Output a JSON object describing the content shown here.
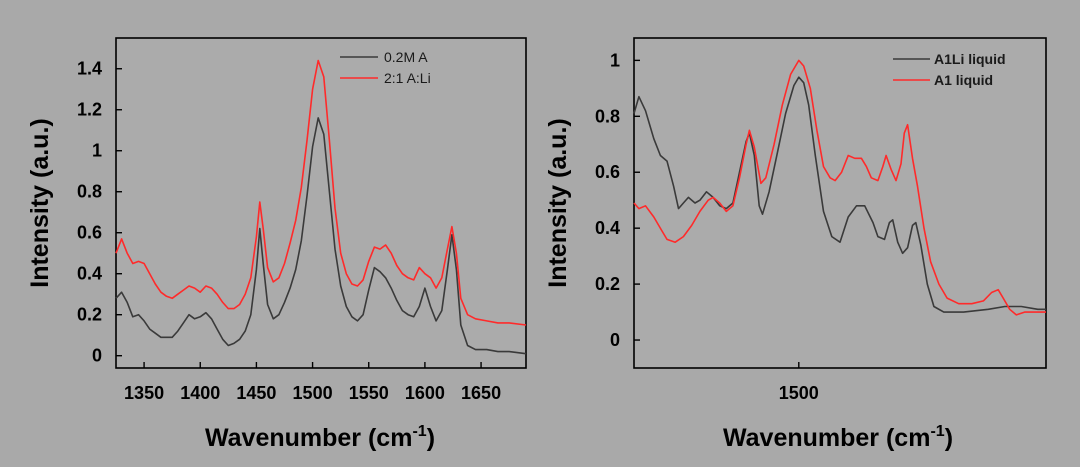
{
  "colors": {
    "background": "#a9a9a9",
    "plot_bg": "#ababab",
    "series_black": "#3a3a3a",
    "series_red": "#ff2a2a"
  },
  "chart_data": [
    {
      "type": "line",
      "xlabel": "Wavenumber (cm",
      "xlabel_sup": "-1",
      "xlabel_close": ")",
      "ylabel": "Intensity (a.u.)",
      "xlim": [
        1325,
        1690
      ],
      "ylim": [
        -0.06,
        1.55
      ],
      "xticks": [
        1350,
        1400,
        1450,
        1500,
        1550,
        1600,
        1650
      ],
      "xtick_labels": [
        "1350",
        "1400",
        "1450",
        "1500",
        "1550",
        "1600",
        "1650"
      ],
      "yticks": [
        0,
        0.2,
        0.4,
        0.6,
        0.8,
        1,
        1.2,
        1.4
      ],
      "ytick_labels": [
        "0",
        "0.2",
        "0.4",
        "0.6",
        "0.8",
        "1",
        "1.2",
        "1.4"
      ],
      "legend_position": "top-right",
      "series": [
        {
          "name": "0.2M A",
          "color": "#3a3a3a",
          "points": [
            [
              1325,
              0.28
            ],
            [
              1330,
              0.31
            ],
            [
              1335,
              0.26
            ],
            [
              1340,
              0.19
            ],
            [
              1345,
              0.2
            ],
            [
              1350,
              0.17
            ],
            [
              1355,
              0.13
            ],
            [
              1360,
              0.11
            ],
            [
              1365,
              0.09
            ],
            [
              1370,
              0.09
            ],
            [
              1375,
              0.09
            ],
            [
              1380,
              0.12
            ],
            [
              1385,
              0.16
            ],
            [
              1390,
              0.2
            ],
            [
              1395,
              0.18
            ],
            [
              1400,
              0.19
            ],
            [
              1405,
              0.21
            ],
            [
              1410,
              0.18
            ],
            [
              1415,
              0.13
            ],
            [
              1420,
              0.08
            ],
            [
              1425,
              0.05
            ],
            [
              1430,
              0.06
            ],
            [
              1435,
              0.08
            ],
            [
              1440,
              0.12
            ],
            [
              1445,
              0.2
            ],
            [
              1450,
              0.42
            ],
            [
              1453,
              0.62
            ],
            [
              1456,
              0.45
            ],
            [
              1460,
              0.25
            ],
            [
              1465,
              0.18
            ],
            [
              1470,
              0.2
            ],
            [
              1475,
              0.26
            ],
            [
              1480,
              0.33
            ],
            [
              1485,
              0.42
            ],
            [
              1490,
              0.56
            ],
            [
              1495,
              0.78
            ],
            [
              1500,
              1.02
            ],
            [
              1505,
              1.16
            ],
            [
              1510,
              1.08
            ],
            [
              1515,
              0.8
            ],
            [
              1520,
              0.52
            ],
            [
              1525,
              0.34
            ],
            [
              1530,
              0.24
            ],
            [
              1535,
              0.19
            ],
            [
              1540,
              0.17
            ],
            [
              1545,
              0.2
            ],
            [
              1550,
              0.32
            ],
            [
              1555,
              0.43
            ],
            [
              1560,
              0.41
            ],
            [
              1565,
              0.38
            ],
            [
              1570,
              0.33
            ],
            [
              1575,
              0.27
            ],
            [
              1580,
              0.22
            ],
            [
              1585,
              0.2
            ],
            [
              1590,
              0.19
            ],
            [
              1595,
              0.24
            ],
            [
              1600,
              0.33
            ],
            [
              1605,
              0.24
            ],
            [
              1610,
              0.17
            ],
            [
              1615,
              0.22
            ],
            [
              1620,
              0.42
            ],
            [
              1624,
              0.59
            ],
            [
              1628,
              0.42
            ],
            [
              1632,
              0.15
            ],
            [
              1638,
              0.05
            ],
            [
              1645,
              0.03
            ],
            [
              1655,
              0.03
            ],
            [
              1665,
              0.02
            ],
            [
              1675,
              0.02
            ],
            [
              1690,
              0.01
            ]
          ]
        },
        {
          "name": "2:1 A:Li",
          "color": "#ff2a2a",
          "points": [
            [
              1325,
              0.5
            ],
            [
              1330,
              0.57
            ],
            [
              1335,
              0.5
            ],
            [
              1340,
              0.45
            ],
            [
              1345,
              0.46
            ],
            [
              1350,
              0.45
            ],
            [
              1355,
              0.4
            ],
            [
              1360,
              0.35
            ],
            [
              1365,
              0.31
            ],
            [
              1370,
              0.29
            ],
            [
              1375,
              0.28
            ],
            [
              1380,
              0.3
            ],
            [
              1385,
              0.32
            ],
            [
              1390,
              0.34
            ],
            [
              1395,
              0.33
            ],
            [
              1400,
              0.31
            ],
            [
              1405,
              0.34
            ],
            [
              1410,
              0.33
            ],
            [
              1415,
              0.3
            ],
            [
              1420,
              0.26
            ],
            [
              1425,
              0.23
            ],
            [
              1430,
              0.23
            ],
            [
              1435,
              0.25
            ],
            [
              1440,
              0.3
            ],
            [
              1445,
              0.38
            ],
            [
              1450,
              0.58
            ],
            [
              1453,
              0.75
            ],
            [
              1456,
              0.62
            ],
            [
              1460,
              0.43
            ],
            [
              1465,
              0.36
            ],
            [
              1470,
              0.38
            ],
            [
              1475,
              0.45
            ],
            [
              1480,
              0.55
            ],
            [
              1485,
              0.66
            ],
            [
              1490,
              0.82
            ],
            [
              1495,
              1.05
            ],
            [
              1500,
              1.3
            ],
            [
              1505,
              1.44
            ],
            [
              1510,
              1.36
            ],
            [
              1515,
              1.05
            ],
            [
              1520,
              0.72
            ],
            [
              1525,
              0.5
            ],
            [
              1530,
              0.4
            ],
            [
              1535,
              0.35
            ],
            [
              1540,
              0.34
            ],
            [
              1545,
              0.37
            ],
            [
              1550,
              0.46
            ],
            [
              1555,
              0.53
            ],
            [
              1560,
              0.52
            ],
            [
              1565,
              0.54
            ],
            [
              1570,
              0.5
            ],
            [
              1575,
              0.44
            ],
            [
              1580,
              0.4
            ],
            [
              1585,
              0.38
            ],
            [
              1590,
              0.37
            ],
            [
              1595,
              0.43
            ],
            [
              1600,
              0.4
            ],
            [
              1605,
              0.38
            ],
            [
              1610,
              0.33
            ],
            [
              1615,
              0.38
            ],
            [
              1620,
              0.52
            ],
            [
              1624,
              0.63
            ],
            [
              1628,
              0.5
            ],
            [
              1632,
              0.28
            ],
            [
              1638,
              0.2
            ],
            [
              1645,
              0.18
            ],
            [
              1655,
              0.17
            ],
            [
              1665,
              0.16
            ],
            [
              1675,
              0.16
            ],
            [
              1690,
              0.15
            ]
          ]
        }
      ]
    },
    {
      "type": "line",
      "xlabel": "Wavenumber (cm",
      "xlabel_sup": "-1",
      "xlabel_close": ")",
      "ylabel": "Intensity (a.u.)",
      "xlim": [
        1400,
        1650
      ],
      "ylim": [
        -0.1,
        1.08
      ],
      "xticks": [
        1500
      ],
      "xtick_labels": [
        "1500"
      ],
      "yticks": [
        0,
        0.2,
        0.4,
        0.6,
        0.8,
        1
      ],
      "ytick_labels": [
        "0",
        "0.2",
        "0.4",
        "0.6",
        "0.8",
        "1"
      ],
      "legend_position": "top-right",
      "series": [
        {
          "name": "A1Li liquid",
          "color": "#3a3a3a",
          "points": [
            [
              1400,
              0.81
            ],
            [
              1403,
              0.87
            ],
            [
              1407,
              0.82
            ],
            [
              1412,
              0.72
            ],
            [
              1416,
              0.66
            ],
            [
              1420,
              0.64
            ],
            [
              1424,
              0.55
            ],
            [
              1427,
              0.47
            ],
            [
              1430,
              0.49
            ],
            [
              1433,
              0.51
            ],
            [
              1437,
              0.49
            ],
            [
              1440,
              0.5
            ],
            [
              1444,
              0.53
            ],
            [
              1448,
              0.51
            ],
            [
              1452,
              0.48
            ],
            [
              1456,
              0.47
            ],
            [
              1460,
              0.49
            ],
            [
              1464,
              0.6
            ],
            [
              1468,
              0.71
            ],
            [
              1470,
              0.74
            ],
            [
              1473,
              0.66
            ],
            [
              1476,
              0.48
            ],
            [
              1478,
              0.45
            ],
            [
              1482,
              0.53
            ],
            [
              1487,
              0.67
            ],
            [
              1492,
              0.81
            ],
            [
              1497,
              0.91
            ],
            [
              1500,
              0.94
            ],
            [
              1503,
              0.92
            ],
            [
              1506,
              0.84
            ],
            [
              1510,
              0.66
            ],
            [
              1515,
              0.46
            ],
            [
              1520,
              0.37
            ],
            [
              1525,
              0.35
            ],
            [
              1530,
              0.44
            ],
            [
              1535,
              0.48
            ],
            [
              1540,
              0.48
            ],
            [
              1545,
              0.42
            ],
            [
              1548,
              0.37
            ],
            [
              1552,
              0.36
            ],
            [
              1555,
              0.42
            ],
            [
              1557,
              0.43
            ],
            [
              1560,
              0.35
            ],
            [
              1563,
              0.31
            ],
            [
              1566,
              0.33
            ],
            [
              1569,
              0.41
            ],
            [
              1571,
              0.42
            ],
            [
              1574,
              0.34
            ],
            [
              1578,
              0.2
            ],
            [
              1582,
              0.12
            ],
            [
              1588,
              0.1
            ],
            [
              1600,
              0.1
            ],
            [
              1615,
              0.11
            ],
            [
              1625,
              0.12
            ],
            [
              1635,
              0.12
            ],
            [
              1645,
              0.11
            ],
            [
              1650,
              0.11
            ]
          ]
        },
        {
          "name": "A1 liquid",
          "color": "#ff2a2a",
          "points": [
            [
              1400,
              0.49
            ],
            [
              1403,
              0.47
            ],
            [
              1407,
              0.48
            ],
            [
              1412,
              0.44
            ],
            [
              1417,
              0.39
            ],
            [
              1420,
              0.36
            ],
            [
              1425,
              0.35
            ],
            [
              1430,
              0.37
            ],
            [
              1435,
              0.41
            ],
            [
              1440,
              0.46
            ],
            [
              1445,
              0.5
            ],
            [
              1448,
              0.51
            ],
            [
              1452,
              0.49
            ],
            [
              1456,
              0.46
            ],
            [
              1460,
              0.48
            ],
            [
              1464,
              0.58
            ],
            [
              1468,
              0.7
            ],
            [
              1470,
              0.75
            ],
            [
              1473,
              0.69
            ],
            [
              1477,
              0.56
            ],
            [
              1480,
              0.58
            ],
            [
              1485,
              0.7
            ],
            [
              1490,
              0.84
            ],
            [
              1495,
              0.95
            ],
            [
              1500,
              1.0
            ],
            [
              1503,
              0.98
            ],
            [
              1507,
              0.9
            ],
            [
              1511,
              0.75
            ],
            [
              1515,
              0.62
            ],
            [
              1519,
              0.58
            ],
            [
              1522,
              0.57
            ],
            [
              1526,
              0.6
            ],
            [
              1530,
              0.66
            ],
            [
              1534,
              0.65
            ],
            [
              1538,
              0.65
            ],
            [
              1541,
              0.62
            ],
            [
              1544,
              0.58
            ],
            [
              1548,
              0.57
            ],
            [
              1551,
              0.62
            ],
            [
              1553,
              0.66
            ],
            [
              1556,
              0.61
            ],
            [
              1559,
              0.57
            ],
            [
              1562,
              0.63
            ],
            [
              1564,
              0.74
            ],
            [
              1566,
              0.77
            ],
            [
              1569,
              0.65
            ],
            [
              1572,
              0.55
            ],
            [
              1576,
              0.4
            ],
            [
              1580,
              0.28
            ],
            [
              1585,
              0.2
            ],
            [
              1590,
              0.15
            ],
            [
              1597,
              0.13
            ],
            [
              1605,
              0.13
            ],
            [
              1612,
              0.14
            ],
            [
              1617,
              0.17
            ],
            [
              1621,
              0.18
            ],
            [
              1624,
              0.15
            ],
            [
              1628,
              0.11
            ],
            [
              1632,
              0.09
            ],
            [
              1637,
              0.1
            ],
            [
              1645,
              0.1
            ],
            [
              1650,
              0.1
            ]
          ]
        }
      ]
    }
  ]
}
